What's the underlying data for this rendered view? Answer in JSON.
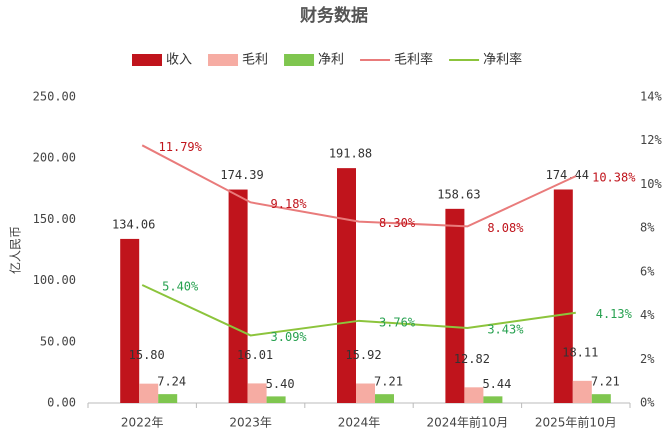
{
  "chart_data": {
    "type": "bar-line",
    "title": "财务数据",
    "y_label": "亿人民币",
    "categories": [
      "2022年",
      "2023年",
      "2024年",
      "2024年前10月",
      "2025年前10月"
    ],
    "series": [
      {
        "name": "收入",
        "type": "bar",
        "color": "#c0141c",
        "values": [
          134.06,
          174.39,
          191.88,
          158.63,
          174.44
        ],
        "value_labels": [
          "134.06",
          "174.39",
          "191.88",
          "158.63",
          "174.44"
        ]
      },
      {
        "name": "毛利",
        "type": "bar",
        "color": "#f6aca3",
        "values": [
          15.8,
          16.01,
          15.92,
          12.82,
          18.11
        ],
        "value_labels": [
          "15.80",
          "16.01",
          "15.92",
          "12.82",
          "18.11"
        ]
      },
      {
        "name": "净利",
        "type": "bar",
        "color": "#7fc64f",
        "values": [
          7.24,
          5.4,
          7.21,
          5.44,
          7.21
        ],
        "value_labels": [
          "7.24",
          "5.40",
          "7.21",
          "5.44",
          "7.21"
        ]
      },
      {
        "name": "毛利率",
        "type": "line",
        "axis": "y2",
        "color": "#e97b7b",
        "label_color": "#c0141c",
        "values": [
          11.79,
          9.18,
          8.3,
          8.08,
          10.38
        ],
        "value_labels": [
          "11.79%",
          "9.18%",
          "8.30%",
          "8.08%",
          "10.38%"
        ]
      },
      {
        "name": "净利率",
        "type": "line",
        "axis": "y2",
        "color": "#8cc43c",
        "label_color": "#27a150",
        "values": [
          5.4,
          3.09,
          3.76,
          3.43,
          4.13
        ],
        "value_labels": [
          "5.40%",
          "3.09%",
          "3.76%",
          "3.43%",
          "4.13%"
        ]
      }
    ],
    "ylim": [
      0,
      250
    ],
    "yticks": [
      {
        "value": 0,
        "label": "0.00"
      },
      {
        "value": 50,
        "label": "50.00"
      },
      {
        "value": 100,
        "label": "100.00"
      },
      {
        "value": 150,
        "label": "150.00"
      },
      {
        "value": 200,
        "label": "200.00"
      },
      {
        "value": 250,
        "label": "250.00"
      }
    ],
    "y2lim": [
      0,
      14
    ],
    "y2ticks": [
      {
        "value": 0,
        "label": "0%"
      },
      {
        "value": 2,
        "label": "2%"
      },
      {
        "value": 4,
        "label": "4%"
      },
      {
        "value": 6,
        "label": "6%"
      },
      {
        "value": 8,
        "label": "8%"
      },
      {
        "value": 10,
        "label": "10%"
      },
      {
        "value": 12,
        "label": "12%"
      },
      {
        "value": 14,
        "label": "14%"
      }
    ]
  }
}
